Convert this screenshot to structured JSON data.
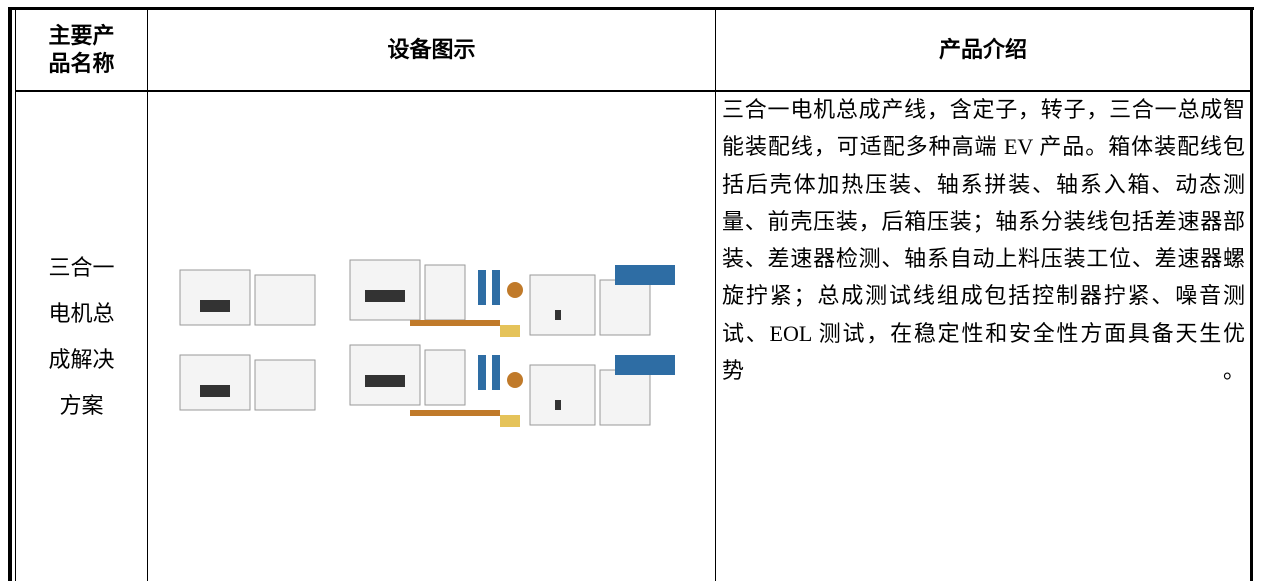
{
  "table": {
    "header": [
      "主要产品名称",
      "设备图示",
      "产品介绍"
    ],
    "rows": [
      {
        "name": "三合一电机总成解决方案",
        "description": "三合一电机总成产线，含定子，转子，三合一总成智能装配线，可适配多种高端 EV 产品。箱体装配线包括后壳体加热压装、轴系拼装、轴系入箱、动态测量、前壳压装，后箱压装；轴系分装线包括差速器部装、差速器检测、轴系自动上料压装工位、差速器螺旋拧紧；总成测试线组成包括控制器拧紧、噪音测试、EOL 测试，在稳定性和安全性方面具备天生优势。"
      }
    ]
  }
}
